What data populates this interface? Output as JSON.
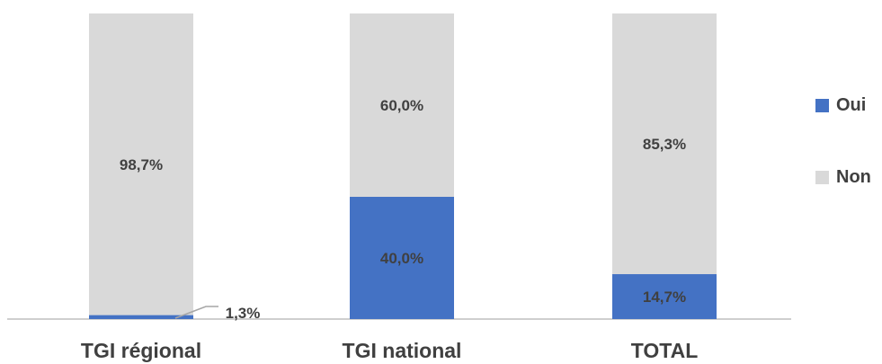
{
  "chart_data": {
    "type": "bar",
    "stacked": true,
    "percent": true,
    "categories": [
      "TGI régional",
      "TGI national",
      "TOTAL"
    ],
    "series": [
      {
        "name": "Oui",
        "values": [
          1.3,
          40.0,
          14.7
        ],
        "labels": [
          "1,3%",
          "40,0%",
          "14,7%"
        ],
        "color": "#4472C4"
      },
      {
        "name": "Non",
        "values": [
          98.7,
          60.0,
          85.3
        ],
        "labels": [
          "98,7%",
          "60,0%",
          "85,3%"
        ],
        "color": "#D9D9D9"
      }
    ],
    "ylim": [
      0,
      100
    ],
    "grid": false,
    "legend_position": "right"
  }
}
